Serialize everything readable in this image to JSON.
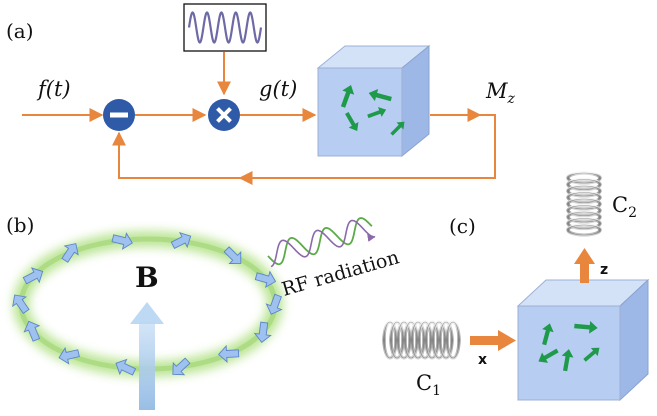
{
  "panels": {
    "a": {
      "label": "(a)",
      "input_label": "f(t)",
      "mid_label": "g(t)",
      "output_label": "M",
      "output_sub": "z",
      "minus_symbol": "–",
      "times_symbol": "×"
    },
    "b": {
      "label": "(b)",
      "field_label": "B",
      "rf_label": "RF radiation"
    },
    "c": {
      "label": "(c)",
      "coil_top_label": "C",
      "coil_top_sub": "2",
      "coil_left_label": "C",
      "coil_left_sub": "1",
      "axis_x": "x",
      "axis_z": "z"
    }
  },
  "colors": {
    "signal_line": "#e8863d",
    "operator_blue": "#2e5aa8",
    "cube_front": "#b7cdf2",
    "cube_top": "#d4e2f8",
    "cube_side": "#9db8e6",
    "spin_arrow": "#1e9a4a",
    "ring_glow": "#b7e38f",
    "ring_arrow": "#9fc1f0",
    "field_arrow": "#a9cdee",
    "wave_green": "#5cab48",
    "wave_purple": "#8a6aaa"
  }
}
